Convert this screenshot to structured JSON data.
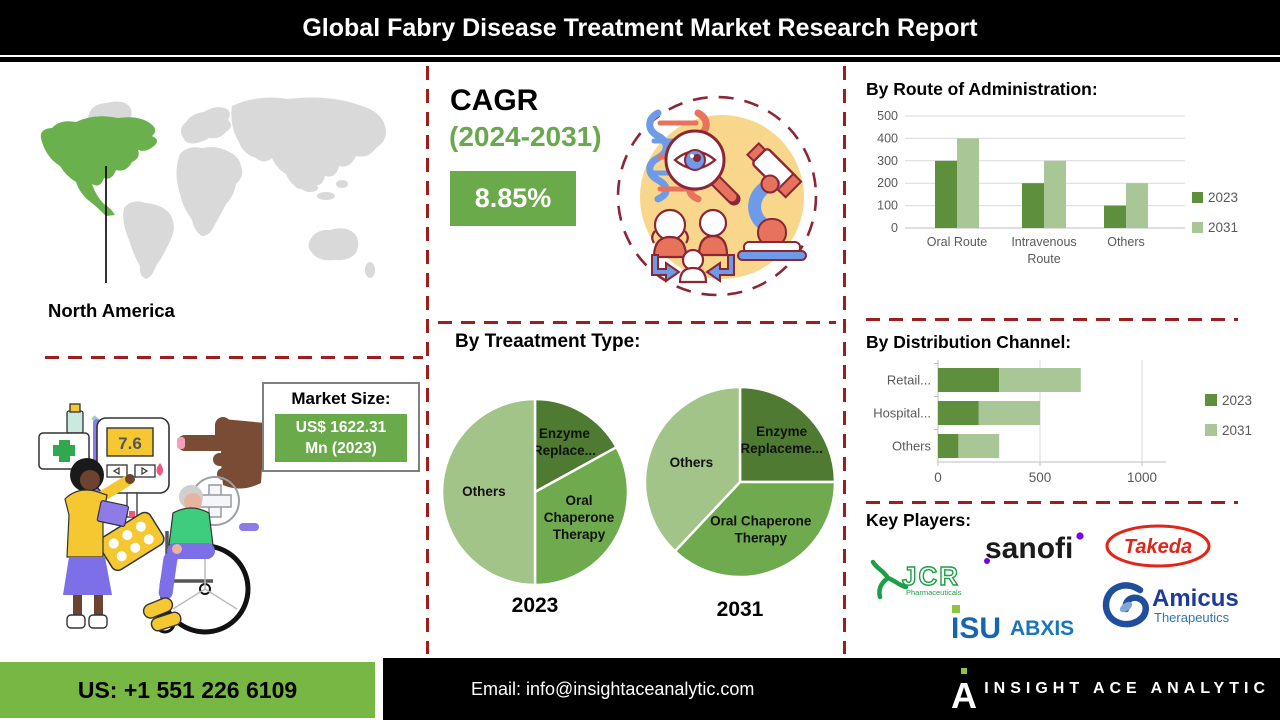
{
  "header": {
    "title": "Global Fabry Disease Treatment Market Research Report"
  },
  "map_section": {
    "region_label": "North America"
  },
  "cagr": {
    "label": "CAGR",
    "period": "(2024-2031)",
    "value": "8.85%"
  },
  "market_size": {
    "label": "Market Size:",
    "value_line1": "US$ 1622.31",
    "value_line2": "Mn (2023)"
  },
  "sections": {
    "route": {
      "heading": "By Route of Administration:"
    },
    "treatment": {
      "heading": "By Treaatment Type:"
    },
    "distribution": {
      "heading": "By Distribution Channel:"
    },
    "key_players": {
      "heading": "Key Players:"
    }
  },
  "key_players": {
    "sanofi": "sanofi",
    "takeda": "Takeda",
    "jcr": "JCR",
    "jcr_sub": "Pharmaceuticals",
    "isu": "ISU",
    "abxis": "ABXIS",
    "amicus": "Amicus",
    "amicus_sub": "Therapeutics"
  },
  "footer": {
    "phone": "US: +1 551 226 6109",
    "email": "Email: info@insightaceanalytic.com",
    "brand": "INSIGHT ACE ANALYTIC",
    "brand_mark": "A"
  },
  "colors": {
    "accent_green": "#6AAA4A",
    "bright_green": "#76B843",
    "dash_red": "#9E1D1D",
    "map_highlight": "#6AB04C",
    "map_gray": "#D9D9D9",
    "series_2023": "#5D8F3C",
    "series_2031": "#A8C696",
    "pie_dark": "#4E7B31",
    "pie_medium": "#6FAA4E",
    "pie_light": "#A3C489"
  },
  "chart_data": [
    {
      "id": "route",
      "type": "bar",
      "title": "By Route of Administration:",
      "categories": [
        "Oral Route",
        "Intravenous Route",
        "Others"
      ],
      "series": [
        {
          "name": "2023",
          "color": "#5D8F3C",
          "values": [
            300,
            200,
            100
          ]
        },
        {
          "name": "2031",
          "color": "#A8C696",
          "values": [
            400,
            300,
            200
          ]
        }
      ],
      "ylim": [
        0,
        500
      ],
      "yticks": [
        0,
        100,
        200,
        300,
        400,
        500
      ],
      "grid": true,
      "legend_position": "right"
    },
    {
      "id": "treatment-2023",
      "type": "pie",
      "year_label": "2023",
      "slices": [
        {
          "label": "Enzyme Replace...",
          "label_lines": [
            "Enzyme",
            "Replace..."
          ],
          "value": 17,
          "color": "#4E7B31"
        },
        {
          "label": "Oral Chaperone Therapy",
          "label_lines": [
            "Oral",
            "Chaperone",
            "Therapy"
          ],
          "value": 33,
          "color": "#6FAA4E"
        },
        {
          "label": "Others",
          "label_lines": [
            "Others"
          ],
          "value": 50,
          "color": "#A3C489"
        }
      ]
    },
    {
      "id": "treatment-2031",
      "type": "pie",
      "year_label": "2031",
      "slices": [
        {
          "label": "Enzyme Replaceme...",
          "label_lines": [
            "Enzyme",
            "Replaceme..."
          ],
          "value": 25,
          "color": "#4E7B31"
        },
        {
          "label": "Oral Chaperone Therapy",
          "label_lines": [
            "Oral Chaperone",
            "Therapy"
          ],
          "value": 37,
          "color": "#6FAA4E"
        },
        {
          "label": "Others",
          "label_lines": [
            "Others"
          ],
          "value": 38,
          "color": "#A3C489"
        }
      ]
    },
    {
      "id": "distribution",
      "type": "bar",
      "orientation": "horizontal-stacked",
      "title": "By Distribution Channel:",
      "categories": [
        "Retail...",
        "Hospital...",
        "Others"
      ],
      "series": [
        {
          "name": "2023",
          "color": "#5D8F3C",
          "values": [
            300,
            200,
            100
          ]
        },
        {
          "name": "2031",
          "color": "#A8C696",
          "values": [
            400,
            300,
            200
          ]
        }
      ],
      "xlim": [
        0,
        1100
      ],
      "xticks": [
        0,
        500,
        1000
      ],
      "grid": true,
      "legend_position": "right"
    }
  ]
}
